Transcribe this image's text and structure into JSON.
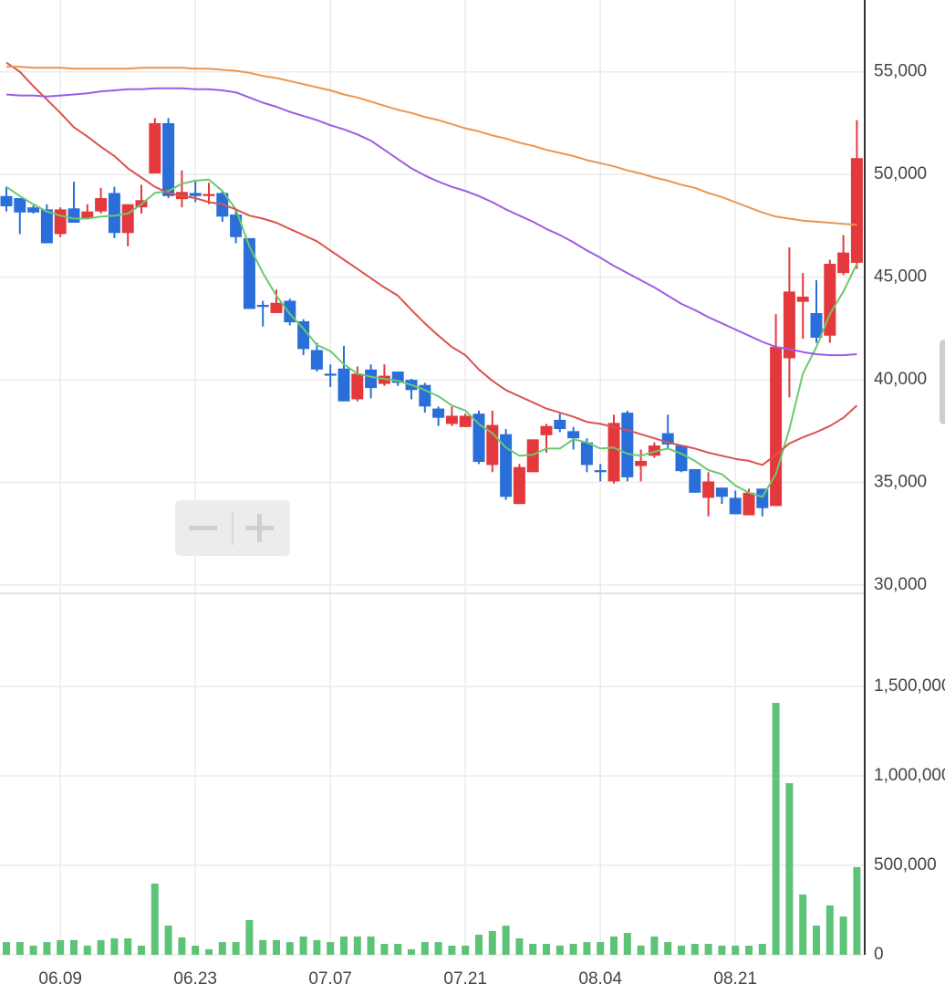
{
  "chart_data": [
    {
      "type": "candlestick",
      "categories": [
        null,
        null,
        null,
        null,
        "06.09",
        null,
        null,
        null,
        null,
        null,
        null,
        null,
        null,
        null,
        "06.23",
        null,
        null,
        null,
        null,
        null,
        null,
        null,
        null,
        null,
        "07.07",
        null,
        null,
        null,
        null,
        null,
        null,
        null,
        null,
        null,
        "07.21",
        null,
        null,
        null,
        null,
        null,
        null,
        null,
        null,
        null,
        "08.04",
        null,
        null,
        null,
        null,
        null,
        null,
        null,
        null,
        null,
        "08.21",
        null,
        null,
        null,
        null,
        null,
        null,
        null,
        null,
        null
      ],
      "open": [
        48950,
        48850,
        48400,
        48300,
        47100,
        48350,
        47850,
        48200,
        49100,
        47150,
        48400,
        50050,
        52500,
        48800,
        49100,
        48950,
        49100,
        48050,
        46900,
        43650,
        43250,
        43850,
        42850,
        41450,
        40300,
        40550,
        39050,
        40500,
        39800,
        40400,
        40000,
        39750,
        38600,
        37850,
        37700,
        38350,
        35850,
        37350,
        33950,
        35500,
        37300,
        38050,
        37500,
        36950,
        35600,
        35050,
        38400,
        35800,
        36300,
        37400,
        36800,
        35650,
        34250,
        34750,
        34250,
        33400,
        34700,
        33850,
        41050,
        43800,
        43250,
        42150,
        45200,
        45700
      ],
      "high": [
        49400,
        48850,
        48500,
        48550,
        48400,
        49650,
        48550,
        49350,
        49400,
        48550,
        49500,
        52750,
        52750,
        50200,
        49650,
        49600,
        49200,
        48300,
        46900,
        43850,
        44400,
        43950,
        42950,
        41800,
        40750,
        41650,
        40650,
        40750,
        40750,
        40400,
        40050,
        39850,
        38700,
        38700,
        38350,
        38500,
        38500,
        37600,
        35900,
        37100,
        37850,
        38350,
        37700,
        37150,
        35900,
        38300,
        38500,
        36600,
        36950,
        38300,
        36800,
        35650,
        35500,
        34750,
        34600,
        34700,
        34700,
        43200,
        46450,
        45200,
        44850,
        45850,
        47050,
        52650
      ],
      "low": [
        48200,
        47100,
        48100,
        46650,
        46950,
        47650,
        47850,
        48100,
        46900,
        46500,
        48100,
        50050,
        48850,
        48400,
        48650,
        48550,
        47700,
        46650,
        43450,
        42600,
        43250,
        42650,
        41200,
        40400,
        39650,
        38950,
        38950,
        39100,
        39700,
        39700,
        39050,
        38400,
        37750,
        37750,
        37700,
        35900,
        35500,
        34150,
        33950,
        35500,
        36450,
        37450,
        36600,
        35500,
        35050,
        34950,
        35050,
        35050,
        36200,
        36600,
        35500,
        34500,
        33350,
        33950,
        33450,
        33400,
        33350,
        33850,
        39150,
        42000,
        41800,
        41800,
        45100,
        45400
      ],
      "close": [
        48450,
        48150,
        48150,
        46650,
        48300,
        47650,
        48200,
        48850,
        47150,
        48550,
        48750,
        52500,
        48950,
        49150,
        48950,
        49050,
        47950,
        46950,
        43450,
        43550,
        43750,
        42800,
        41500,
        40500,
        40200,
        38950,
        40300,
        39600,
        40200,
        39850,
        39500,
        38700,
        38150,
        38250,
        38250,
        36000,
        37800,
        34300,
        35750,
        37100,
        37750,
        37600,
        37150,
        35850,
        35500,
        37900,
        35250,
        36050,
        36800,
        36850,
        35550,
        34500,
        35050,
        34300,
        33450,
        34500,
        33750,
        41600,
        44300,
        44050,
        42050,
        45650,
        46200,
        50800
      ],
      "up_color": "#e4393c",
      "down_color": "#2a6fd9",
      "series": [
        {
          "color": "#6cc86e",
          "values": [
            49400,
            48950,
            48550,
            48200,
            48000,
            47850,
            47850,
            47950,
            48000,
            48100,
            48550,
            49100,
            49200,
            49550,
            49700,
            49750,
            49200,
            48300,
            46500,
            45200,
            44100,
            43200,
            42500,
            41700,
            41400,
            40750,
            40300,
            40150,
            40050,
            39950,
            39750,
            39500,
            39200,
            38750,
            38500,
            37850,
            37400,
            36700,
            36300,
            36350,
            36650,
            36650,
            37100,
            36950,
            36650,
            36700,
            36400,
            36300,
            36500,
            36650,
            36400,
            36050,
            35600,
            35400,
            34850,
            34500,
            34300,
            35400,
            37600,
            40300,
            41600,
            43200,
            44300,
            45650
          ]
        },
        {
          "color": "#d9534f",
          "values": [
            55450,
            55000,
            54300,
            53650,
            53000,
            52300,
            51850,
            51350,
            50900,
            50300,
            49850,
            49400,
            49100,
            48950,
            48850,
            48650,
            48550,
            48300,
            48000,
            47850,
            47650,
            47350,
            47050,
            46750,
            46300,
            45850,
            45400,
            44950,
            44500,
            44100,
            43400,
            42750,
            42150,
            41600,
            41200,
            40500,
            39950,
            39500,
            39200,
            38900,
            38600,
            38400,
            38200,
            37950,
            37850,
            37700,
            37550,
            37350,
            37150,
            36950,
            36800,
            36650,
            36450,
            36300,
            36150,
            36050,
            35850,
            36350,
            36900,
            37200,
            37450,
            37750,
            38150,
            38750
          ]
        },
        {
          "color": "#9d5ce6",
          "values": [
            53900,
            53850,
            53850,
            53800,
            53850,
            53900,
            53950,
            54050,
            54100,
            54150,
            54150,
            54200,
            54200,
            54200,
            54150,
            54150,
            54100,
            54000,
            53750,
            53500,
            53300,
            53050,
            52850,
            52650,
            52400,
            52200,
            51950,
            51650,
            51200,
            50750,
            50300,
            49950,
            49650,
            49400,
            49200,
            48950,
            48650,
            48300,
            48000,
            47700,
            47350,
            47050,
            46700,
            46300,
            45950,
            45550,
            45200,
            44850,
            44500,
            44100,
            43700,
            43400,
            43050,
            42750,
            42450,
            42150,
            41850,
            41600,
            41500,
            41350,
            41250,
            41200,
            41200,
            41250
          ]
        },
        {
          "color": "#eb9550",
          "values": [
            55250,
            55250,
            55200,
            55200,
            55200,
            55150,
            55150,
            55150,
            55150,
            55150,
            55200,
            55200,
            55200,
            55200,
            55150,
            55150,
            55100,
            55050,
            54950,
            54800,
            54700,
            54550,
            54400,
            54250,
            54100,
            53900,
            53750,
            53550,
            53350,
            53150,
            53000,
            52800,
            52650,
            52450,
            52250,
            52100,
            51900,
            51750,
            51550,
            51400,
            51200,
            51050,
            50900,
            50700,
            50550,
            50400,
            50200,
            50050,
            49850,
            49700,
            49500,
            49350,
            49100,
            48900,
            48650,
            48400,
            48150,
            47950,
            47850,
            47750,
            47700,
            47650,
            47600,
            47550
          ]
        }
      ],
      "ylim": [
        30000,
        58500
      ],
      "yticks": [
        {
          "value": 30000,
          "label": "30,000"
        },
        {
          "value": 35000,
          "label": "35,000"
        },
        {
          "value": 40000,
          "label": "40,000"
        },
        {
          "value": 45000,
          "label": "45,000"
        },
        {
          "value": 50000,
          "label": "50,000"
        },
        {
          "value": 55000,
          "label": "55,000"
        }
      ],
      "grid": true
    },
    {
      "type": "bar",
      "color": "#5cc377",
      "values": [
        71000,
        71000,
        51000,
        71000,
        82000,
        82000,
        51000,
        82000,
        92000,
        92000,
        51000,
        398000,
        163000,
        97000,
        51000,
        31000,
        71000,
        71000,
        194000,
        82000,
        82000,
        71000,
        102000,
        82000,
        71000,
        102000,
        102000,
        102000,
        61000,
        61000,
        31000,
        71000,
        71000,
        51000,
        51000,
        112000,
        133000,
        163000,
        92000,
        61000,
        61000,
        51000,
        61000,
        71000,
        71000,
        102000,
        122000,
        51000,
        102000,
        71000,
        51000,
        61000,
        61000,
        51000,
        51000,
        51000,
        61000,
        1408000,
        959000,
        337000,
        163000,
        276000,
        214000,
        490000
      ],
      "ylim": [
        0,
        2010000
      ],
      "yticks": [
        0,
        {
          "value": 500000,
          "label": "500,000"
        },
        {
          "value": 1000000,
          "label": "1,000,000"
        },
        {
          "value": 1500000,
          "label": "1,500,000"
        }
      ],
      "grid": true
    }
  ]
}
